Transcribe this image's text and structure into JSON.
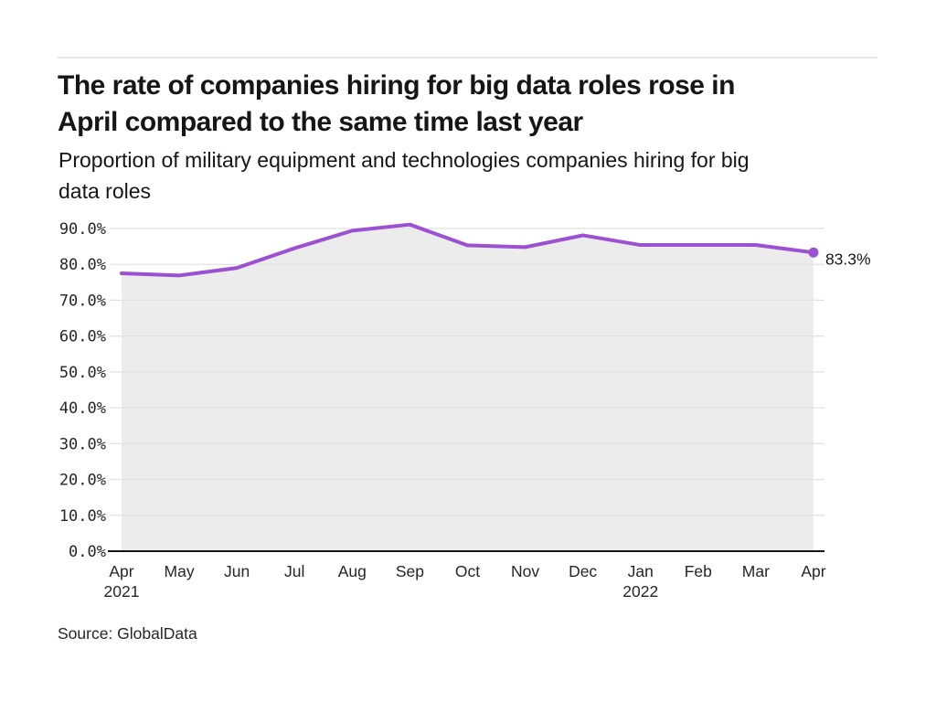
{
  "header": {
    "title_lines": [
      "The rate of companies hiring for big data roles rose in",
      "April compared to the same time last year"
    ],
    "subtitle_lines": [
      "Proportion of military equipment and technologies companies hiring for big",
      "data roles"
    ]
  },
  "source": {
    "label": "Source: GlobalData"
  },
  "colors": {
    "line": "#9B51D2",
    "area_fill": "#ececec",
    "gridline": "#e2e2e2",
    "axis": "#161616",
    "text": "#161616"
  },
  "chart_data": {
    "type": "line",
    "title": "The rate of companies hiring for big data roles rose in April compared to the same time last year",
    "subtitle": "Proportion of military equipment and technologies companies hiring for big data roles",
    "categories": [
      "Apr",
      "May",
      "Jun",
      "Jul",
      "Aug",
      "Sep",
      "Oct",
      "Nov",
      "Dec",
      "Jan",
      "Feb",
      "Mar",
      "Apr"
    ],
    "year_labels": [
      {
        "index": 0,
        "text": "2021"
      },
      {
        "index": 9,
        "text": "2022"
      }
    ],
    "values": [
      77.5,
      76.9,
      79.0,
      84.5,
      89.4,
      91.1,
      85.3,
      84.8,
      88.1,
      85.4,
      85.4,
      85.4,
      83.3
    ],
    "unit": "%",
    "end_label": "83.3%",
    "y_ticks": [
      {
        "value": 0,
        "label": "0.0%"
      },
      {
        "value": 10,
        "label": "10.0%"
      },
      {
        "value": 20,
        "label": "20.0%"
      },
      {
        "value": 30,
        "label": "30.0%"
      },
      {
        "value": 40,
        "label": "40.0%"
      },
      {
        "value": 50,
        "label": "50.0%"
      },
      {
        "value": 60,
        "label": "60.0%"
      },
      {
        "value": 70,
        "label": "70.0%"
      },
      {
        "value": 80,
        "label": "80.0%"
      },
      {
        "value": 90,
        "label": "90.0%"
      }
    ],
    "ylim": [
      0,
      95
    ],
    "grid": true,
    "legend": false
  }
}
